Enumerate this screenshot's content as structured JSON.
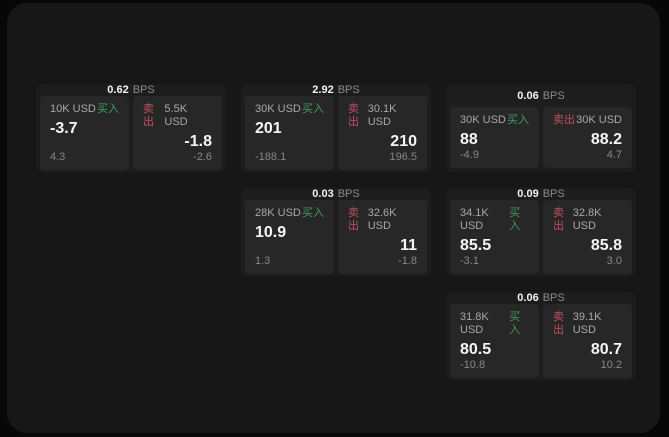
{
  "theme": {
    "buy_color": "#3f9e63",
    "sell_color": "#c04f63",
    "window_bg": "#171717",
    "card_bg": "#1d1d1d",
    "panel_bg": "#272727"
  },
  "cards": [
    {
      "grid": {
        "row": 1,
        "col": 1
      },
      "bps_value": "0.62",
      "bps_label": "BPS",
      "buy": {
        "amount": "10K USD",
        "side_label": "买入",
        "value": "-3.7",
        "sub_value": "4.3"
      },
      "sell": {
        "amount": "5.5K USD",
        "side_label": "卖出",
        "value": "-1.8",
        "sub_value": "-2.6"
      }
    },
    {
      "grid": {
        "row": 1,
        "col": 2
      },
      "bps_value": "2.92",
      "bps_label": "BPS",
      "buy": {
        "amount": "30K USD",
        "side_label": "买入",
        "value": "201",
        "sub_value": "-188.1"
      },
      "sell": {
        "amount": "30.1K USD",
        "side_label": "卖出",
        "value": "210",
        "sub_value": "196.5"
      }
    },
    {
      "grid": {
        "row": 1,
        "col": 3
      },
      "bps_value": "0.06",
      "bps_label": "BPS",
      "buy": {
        "amount": "30K USD",
        "side_label": "买入",
        "value": "88",
        "sub_value": "-4.9"
      },
      "sell": {
        "amount": "30K USD",
        "side_label": "卖出",
        "value": "88.2",
        "sub_value": "4.7"
      }
    },
    {
      "grid": {
        "row": 2,
        "col": 2
      },
      "bps_value": "0.03",
      "bps_label": "BPS",
      "buy": {
        "amount": "28K USD",
        "side_label": "买入",
        "value": "10.9",
        "sub_value": "1.3"
      },
      "sell": {
        "amount": "32.6K USD",
        "side_label": "卖出",
        "value": "11",
        "sub_value": "-1.8"
      }
    },
    {
      "grid": {
        "row": 2,
        "col": 3
      },
      "bps_value": "0.09",
      "bps_label": "BPS",
      "buy": {
        "amount": "34.1K USD",
        "side_label": "买入",
        "value": "85.5",
        "sub_value": "-3.1"
      },
      "sell": {
        "amount": "32.8K USD",
        "side_label": "卖出",
        "value": "85.8",
        "sub_value": "3.0"
      }
    },
    {
      "grid": {
        "row": 3,
        "col": 3
      },
      "bps_value": "0.06",
      "bps_label": "BPS",
      "buy": {
        "amount": "31.8K USD",
        "side_label": "买入",
        "value": "80.5",
        "sub_value": "-10.8"
      },
      "sell": {
        "amount": "39.1K USD",
        "side_label": "卖出",
        "value": "80.7",
        "sub_value": "10.2"
      }
    }
  ]
}
